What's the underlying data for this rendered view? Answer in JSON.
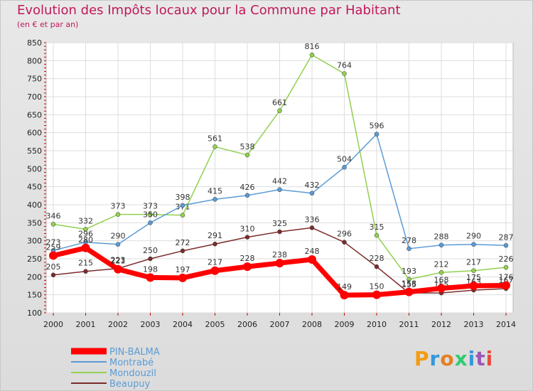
{
  "page": {
    "title": "Evolution des Impôts locaux pour la Commune par Habitant",
    "subtitle": "(en € et par an)",
    "logo_text": "Proxiti"
  },
  "chart_data": {
    "type": "line",
    "title": "Evolution des Impôts locaux pour la Commune par Habitant",
    "subtitle": "(en € et par an)",
    "xlabel": "",
    "ylabel": "",
    "x": [
      "2000",
      "2001",
      "2002",
      "2003",
      "2004",
      "2005",
      "2006",
      "2007",
      "2008",
      "2009",
      "2010",
      "2011",
      "2012",
      "2013",
      "2014"
    ],
    "ylim": [
      100,
      850
    ],
    "yticks": [
      100,
      150,
      200,
      250,
      300,
      350,
      400,
      450,
      500,
      550,
      600,
      650,
      700,
      750,
      800,
      850
    ],
    "grid": true,
    "legend_position": "bottom-left",
    "series": [
      {
        "name": "PIN-BALMA",
        "color": "#ff0000",
        "width": 7,
        "values": [
          259,
          280,
          221,
          198,
          197,
          217,
          228,
          238,
          248,
          149,
          150,
          158,
          168,
          175,
          176
        ]
      },
      {
        "name": "Montrabé",
        "color": "#5b9bd5",
        "width": 1.5,
        "values": [
          273,
          296,
          290,
          350,
          398,
          415,
          426,
          442,
          432,
          504,
          596,
          278,
          288,
          290,
          287
        ]
      },
      {
        "name": "Mondouzil",
        "color": "#92d050",
        "width": 1.5,
        "values": [
          346,
          332,
          373,
          373,
          371,
          561,
          538,
          661,
          816,
          764,
          315,
          193,
          212,
          217,
          226
        ]
      },
      {
        "name": "Beaupuy",
        "color": "#7b2c2c",
        "width": 1.5,
        "values": [
          205,
          215,
          223,
          250,
          272,
          291,
          310,
          325,
          336,
          296,
          228,
          155,
          155,
          163,
          167
        ]
      }
    ]
  }
}
